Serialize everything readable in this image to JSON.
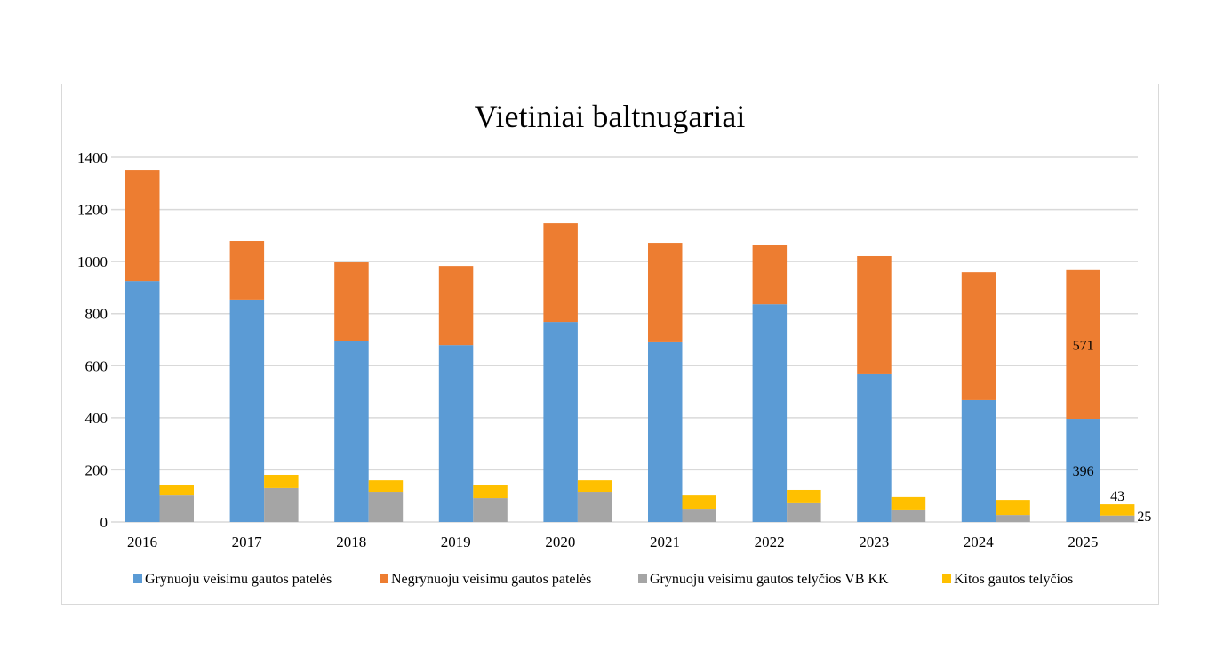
{
  "chart_data": {
    "type": "bar",
    "stacked": true,
    "title": "Vietiniai baltnugariai",
    "xlabel": "",
    "ylabel": "",
    "ylim": [
      0,
      1400
    ],
    "yticks": [
      0,
      200,
      400,
      600,
      800,
      1000,
      1200,
      1400
    ],
    "grid": true,
    "legend_position": "bottom",
    "categories": [
      "2016",
      "2017",
      "2018",
      "2019",
      "2020",
      "2021",
      "2022",
      "2023",
      "2024",
      "2025"
    ],
    "series": [
      {
        "name": "Grynuoju veisimu gautos patelės",
        "stack": "A",
        "color": "#5b9bd5",
        "values": [
          925,
          854,
          696,
          679,
          768,
          690,
          836,
          567,
          468,
          396
        ]
      },
      {
        "name": "Negrynuoju veisimu gautos patelės",
        "stack": "A",
        "color": "#ed7d31",
        "values": [
          427,
          225,
          301,
          304,
          379,
          382,
          226,
          454,
          491,
          571
        ]
      },
      {
        "name": "Grynuoju veisimu gautos telyčios VB KK",
        "stack": "B",
        "color": "#a5a5a5",
        "values": [
          102,
          130,
          116,
          92,
          116,
          51,
          72,
          48,
          27,
          25
        ]
      },
      {
        "name": "Kitos gautos telyčios",
        "stack": "B",
        "color": "#ffc000",
        "values": [
          41,
          51,
          44,
          51,
          44,
          51,
          51,
          48,
          58,
          43
        ]
      }
    ],
    "data_labels": [
      {
        "category": "2025",
        "series": 0,
        "text": "396"
      },
      {
        "category": "2025",
        "series": 1,
        "text": "571"
      },
      {
        "category": "2025",
        "series": 2,
        "text": "25"
      },
      {
        "category": "2025",
        "series": 3,
        "text": "43"
      }
    ]
  }
}
